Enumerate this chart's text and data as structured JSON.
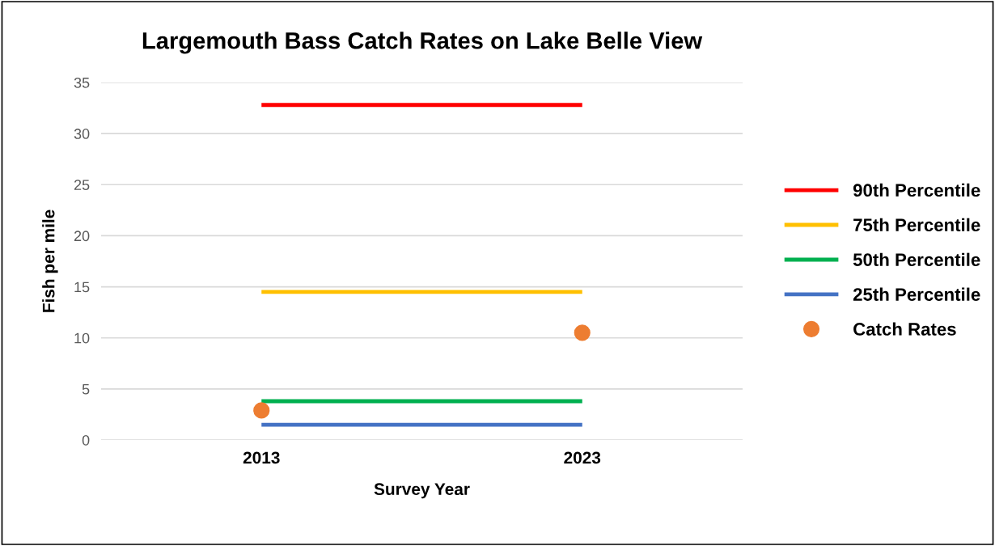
{
  "chart_data": {
    "type": "line",
    "title": "Largemouth Bass Catch Rates on Lake Belle View",
    "xlabel": "Survey Year",
    "ylabel": "Fish per mile",
    "categories": [
      "2013",
      "2023"
    ],
    "series": [
      {
        "name": "90th Percentile",
        "color": "#ff0000",
        "values": [
          32.8,
          32.8
        ]
      },
      {
        "name": "75th Percentile",
        "color": "#ffc000",
        "values": [
          14.5,
          14.5
        ]
      },
      {
        "name": "50th Percentile",
        "color": "#00b050",
        "values": [
          3.8,
          3.8
        ]
      },
      {
        "name": "25th Percentile",
        "color": "#4472c4",
        "values": [
          1.5,
          1.5
        ]
      },
      {
        "name": "Catch Rates",
        "type": "scatter",
        "marker": "circle",
        "color": "#ed7d31",
        "values": [
          2.9,
          10.5
        ]
      }
    ],
    "ylim": [
      0,
      35
    ],
    "yticks": [
      0,
      5,
      10,
      15,
      20,
      25,
      30,
      35
    ],
    "grid": "y",
    "legend": "right"
  }
}
